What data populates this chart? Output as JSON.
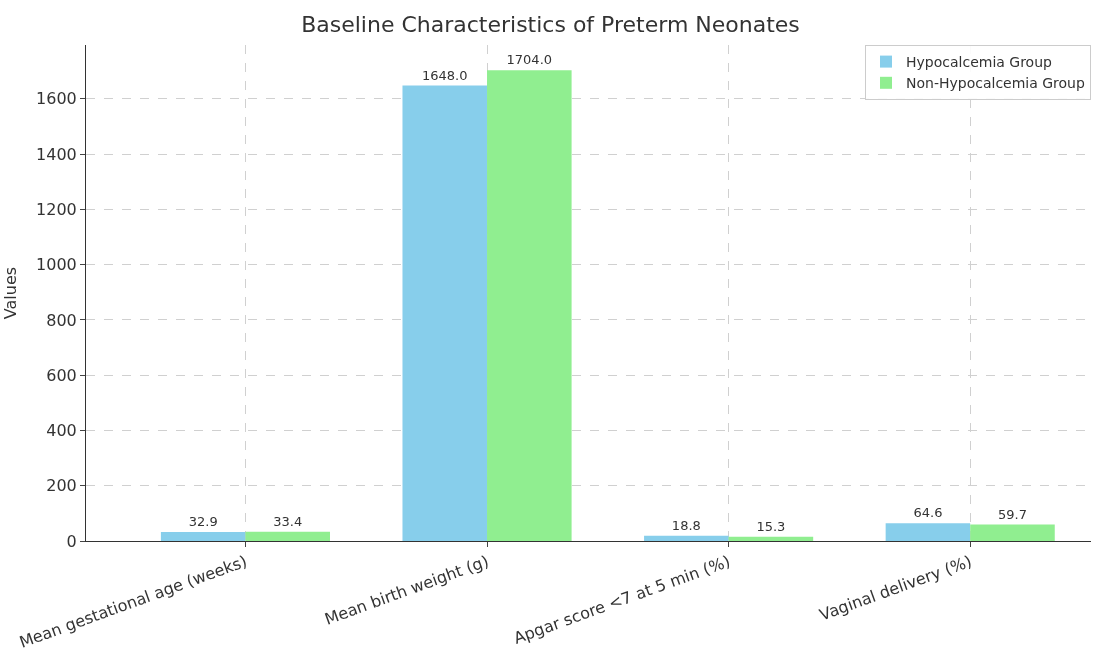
{
  "chart_data": {
    "type": "bar",
    "title": "Baseline Characteristics of Preterm Neonates",
    "ylabel": "Values",
    "categories": [
      "Mean gestational age (weeks)",
      "Mean birth weight (g)",
      "Apgar score <7 at 5 min (%)",
      "Vaginal delivery (%)"
    ],
    "series": [
      {
        "name": "Hypocalcemia Group",
        "color": "#87ceeb",
        "values": [
          32.9,
          1648.0,
          18.8,
          64.6
        ],
        "value_labels": [
          "32.9",
          "1648.0",
          "18.8",
          "64.6"
        ]
      },
      {
        "name": "Non-Hypocalcemia Group",
        "color": "#90ee90",
        "values": [
          33.4,
          1704.0,
          15.3,
          59.7
        ],
        "value_labels": [
          "33.4",
          "1704.0",
          "15.3",
          "59.7"
        ]
      }
    ],
    "ylim": [
      0,
      1795
    ],
    "yticks": [
      0,
      200,
      400,
      600,
      800,
      1000,
      1200,
      1400,
      1600
    ],
    "grid": true,
    "legend": "top right"
  }
}
